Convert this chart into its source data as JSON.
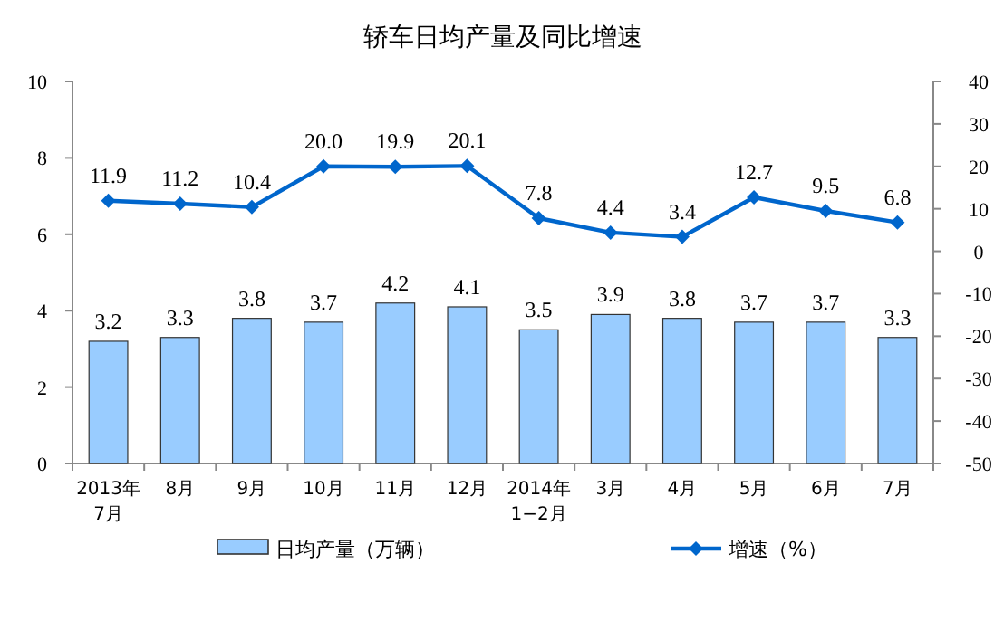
{
  "chart_data": {
    "type": "bar",
    "title": "轿车日均产量及同比增速",
    "categories": [
      "2013年\n7月",
      "8月",
      "9月",
      "10月",
      "11月",
      "12月",
      "2014年\n1−2月",
      "3月",
      "4月",
      "5月",
      "6月",
      "7月"
    ],
    "series": [
      {
        "name": "日均产量（万辆）",
        "color": "#99ccff",
        "values": [
          3.2,
          3.3,
          3.8,
          3.7,
          4.2,
          4.1,
          3.5,
          3.9,
          3.8,
          3.7,
          3.7,
          3.3
        ]
      },
      {
        "name": "增速（%）",
        "type": "line",
        "axis": "y2",
        "color": "#0066cc",
        "marker": "diamond",
        "values": [
          11.9,
          11.2,
          10.4,
          20.0,
          19.9,
          20.1,
          7.8,
          4.4,
          3.4,
          12.7,
          9.5,
          6.8
        ],
        "value_labels": [
          "11.9",
          "11.2",
          "10.4",
          "20.0",
          "19.9",
          "20.1",
          "7.8",
          "4.4",
          "3.4",
          "12.7",
          "9.5",
          "6.8"
        ]
      }
    ],
    "ylim": [
      0,
      10
    ],
    "yticks": [
      0,
      2,
      4,
      6,
      8,
      10
    ],
    "y2lim": [
      -50,
      40
    ],
    "y2ticks": [
      -50,
      -40,
      -30,
      -20,
      -10,
      0,
      10,
      20,
      30,
      40
    ],
    "data_labels": true,
    "legend": "bottom",
    "grid": false
  }
}
